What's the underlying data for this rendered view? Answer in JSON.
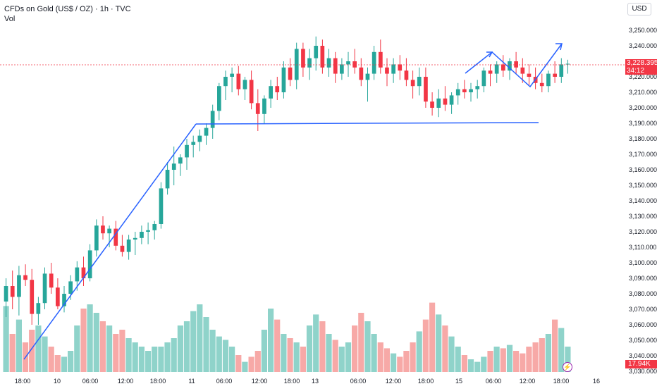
{
  "legend": {
    "symbol": "CFDs on Gold (US$ / OZ)",
    "interval": "1h",
    "source": "TVC",
    "volume_label": "Vol"
  },
  "currency": "USD",
  "price_badge": {
    "price": "3,228.395",
    "countdown": "34:12"
  },
  "volume_badge": "17.94K",
  "colors": {
    "up": "#26a69a",
    "down": "#f23645",
    "drawing": "#2962ff",
    "price_line": "#f23645",
    "vol_up": "#8fd3ca",
    "vol_down": "#f7a9a7"
  },
  "chart_data": {
    "type": "candlestick",
    "ylim": [
      3030,
      3260
    ],
    "y_ticks": [
      "3,250.000",
      "3,240.000",
      "3,220.000",
      "3,210.000",
      "3,200.000",
      "3,190.000",
      "3,180.000",
      "3,170.000",
      "3,160.000",
      "3,150.000",
      "3,140.000",
      "3,130.000",
      "3,120.000",
      "3,110.000",
      "3,100.000",
      "3,090.000",
      "3,080.000",
      "3,070.000",
      "3,060.000",
      "3,050.000",
      "3,040.000",
      "3,030.000"
    ],
    "x_ticks": [
      "18:00",
      "10",
      "06:00",
      "12:00",
      "18:00",
      "11",
      "06:00",
      "12:00",
      "18:00",
      "13",
      "06:00",
      "12:00",
      "18:00",
      "15",
      "06:00",
      "12:00",
      "18:00",
      "16"
    ],
    "last_price": 3228.395,
    "candles": [
      [
        3075,
        3090,
        3065,
        3085
      ],
      [
        3085,
        3095,
        3070,
        3078
      ],
      [
        3078,
        3098,
        3066,
        3092
      ],
      [
        3092,
        3099,
        3085,
        3089
      ],
      [
        3089,
        3096,
        3060,
        3067
      ],
      [
        3067,
        3078,
        3060,
        3074
      ],
      [
        3074,
        3097,
        3070,
        3093
      ],
      [
        3093,
        3100,
        3080,
        3084
      ],
      [
        3084,
        3090,
        3070,
        3072
      ],
      [
        3072,
        3085,
        3068,
        3080
      ],
      [
        3080,
        3092,
        3076,
        3088
      ],
      [
        3088,
        3101,
        3082,
        3097
      ],
      [
        3097,
        3104,
        3085,
        3090
      ],
      [
        3090,
        3112,
        3088,
        3108
      ],
      [
        3108,
        3128,
        3104,
        3124
      ],
      [
        3124,
        3130,
        3115,
        3119
      ],
      [
        3119,
        3124,
        3110,
        3122
      ],
      [
        3122,
        3127,
        3108,
        3111
      ],
      [
        3111,
        3118,
        3104,
        3107
      ],
      [
        3107,
        3118,
        3102,
        3115
      ],
      [
        3115,
        3120,
        3105,
        3116
      ],
      [
        3116,
        3124,
        3112,
        3120
      ],
      [
        3120,
        3126,
        3112,
        3121
      ],
      [
        3121,
        3127,
        3115,
        3125
      ],
      [
        3125,
        3152,
        3122,
        3148
      ],
      [
        3148,
        3165,
        3144,
        3160
      ],
      [
        3160,
        3175,
        3150,
        3164
      ],
      [
        3164,
        3170,
        3156,
        3168
      ],
      [
        3168,
        3180,
        3160,
        3176
      ],
      [
        3176,
        3182,
        3168,
        3178
      ],
      [
        3178,
        3186,
        3172,
        3182
      ],
      [
        3182,
        3190,
        3176,
        3187
      ],
      [
        3187,
        3202,
        3180,
        3198
      ],
      [
        3198,
        3216,
        3192,
        3214
      ],
      [
        3214,
        3224,
        3205,
        3220
      ],
      [
        3220,
        3226,
        3210,
        3222
      ],
      [
        3222,
        3227,
        3208,
        3212
      ],
      [
        3212,
        3220,
        3205,
        3218
      ],
      [
        3218,
        3224,
        3199,
        3203
      ],
      [
        3203,
        3212,
        3185,
        3196
      ],
      [
        3196,
        3208,
        3190,
        3206
      ],
      [
        3206,
        3218,
        3200,
        3214
      ],
      [
        3214,
        3220,
        3205,
        3210
      ],
      [
        3210,
        3230,
        3206,
        3226
      ],
      [
        3226,
        3232,
        3214,
        3218
      ],
      [
        3218,
        3242,
        3212,
        3238
      ],
      [
        3238,
        3242,
        3220,
        3226
      ],
      [
        3226,
        3238,
        3218,
        3232
      ],
      [
        3232,
        3246,
        3224,
        3240
      ],
      [
        3240,
        3244,
        3222,
        3226
      ],
      [
        3226,
        3238,
        3220,
        3232
      ],
      [
        3232,
        3236,
        3216,
        3222
      ],
      [
        3222,
        3232,
        3218,
        3228
      ],
      [
        3228,
        3236,
        3220,
        3230
      ],
      [
        3230,
        3238,
        3222,
        3226
      ],
      [
        3226,
        3232,
        3214,
        3218
      ],
      [
        3218,
        3226,
        3204,
        3222
      ],
      [
        3222,
        3240,
        3218,
        3236
      ],
      [
        3236,
        3244,
        3222,
        3226
      ],
      [
        3226,
        3232,
        3214,
        3222
      ],
      [
        3222,
        3232,
        3216,
        3228
      ],
      [
        3228,
        3234,
        3218,
        3224
      ],
      [
        3224,
        3232,
        3214,
        3218
      ],
      [
        3218,
        3224,
        3206,
        3214
      ],
      [
        3214,
        3226,
        3208,
        3220
      ],
      [
        3220,
        3226,
        3200,
        3204
      ],
      [
        3204,
        3210,
        3195,
        3200
      ],
      [
        3200,
        3212,
        3194,
        3206
      ],
      [
        3206,
        3214,
        3198,
        3202
      ],
      [
        3202,
        3210,
        3196,
        3208
      ],
      [
        3208,
        3216,
        3202,
        3212
      ],
      [
        3212,
        3218,
        3206,
        3210
      ],
      [
        3210,
        3216,
        3204,
        3212
      ],
      [
        3212,
        3218,
        3206,
        3214
      ],
      [
        3214,
        3226,
        3210,
        3224
      ],
      [
        3224,
        3228,
        3214,
        3222
      ],
      [
        3222,
        3230,
        3216,
        3228
      ],
      [
        3228,
        3234,
        3220,
        3224
      ],
      [
        3224,
        3232,
        3218,
        3230
      ],
      [
        3230,
        3236,
        3222,
        3226
      ],
      [
        3226,
        3232,
        3216,
        3222
      ],
      [
        3222,
        3228,
        3214,
        3220
      ],
      [
        3220,
        3226,
        3212,
        3216
      ],
      [
        3216,
        3222,
        3210,
        3214
      ],
      [
        3214,
        3224,
        3210,
        3222
      ],
      [
        3222,
        3230,
        3216,
        3220
      ],
      [
        3220,
        3232,
        3216,
        3228
      ],
      [
        3228,
        3231,
        3222,
        3228.4
      ]
    ],
    "volume_levels": [
      0.78,
      0.45,
      0.62,
      0.35,
      0.5,
      0.55,
      0.42,
      0.3,
      0.2,
      0.18,
      0.25,
      0.55,
      0.75,
      0.8,
      0.7,
      0.6,
      0.55,
      0.45,
      0.5,
      0.4,
      0.35,
      0.3,
      0.25,
      0.3,
      0.3,
      0.35,
      0.4,
      0.55,
      0.6,
      0.72,
      0.8,
      0.65,
      0.5,
      0.42,
      0.38,
      0.3,
      0.2,
      0.12,
      0.18,
      0.25,
      0.5,
      0.75,
      0.62,
      0.45,
      0.4,
      0.35,
      0.3,
      0.55,
      0.68,
      0.6,
      0.45,
      0.38,
      0.3,
      0.35,
      0.55,
      0.7,
      0.6,
      0.45,
      0.35,
      0.28,
      0.22,
      0.18,
      0.25,
      0.35,
      0.48,
      0.62,
      0.82,
      0.68,
      0.55,
      0.42,
      0.3,
      0.2,
      0.15,
      0.12,
      0.18,
      0.25,
      0.3,
      0.28,
      0.32,
      0.25,
      0.22,
      0.3,
      0.35,
      0.4,
      0.45,
      0.62,
      0.52,
      0.3
    ]
  }
}
